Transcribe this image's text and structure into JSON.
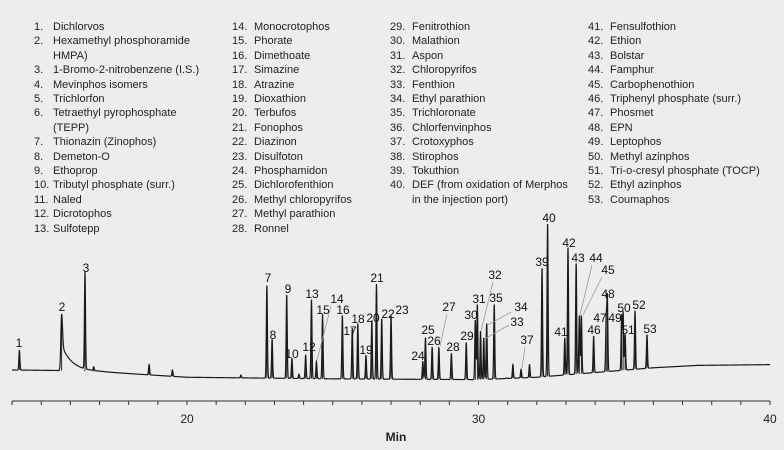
{
  "legend": {
    "columns": [
      [
        {
          "num": "1.",
          "name": "Dichlorvos"
        },
        {
          "num": "2.",
          "name": "Hexamethyl phosphoramide",
          "cont": "HMPA)"
        },
        {
          "num": "3.",
          "name": "1-Bromo-2-nitrobenzene (I.S.)"
        },
        {
          "num": "4.",
          "name": "Mevinphos isomers"
        },
        {
          "num": "5.",
          "name": "Trichlorfon"
        },
        {
          "num": "6.",
          "name": "Tetraethyl pyrophosphate",
          "cont": "(TEPP)"
        },
        {
          "num": "7.",
          "name": "Thionazin (Zinophos)"
        },
        {
          "num": "8.",
          "name": "Demeton-O"
        },
        {
          "num": "9.",
          "name": "Ethoprop"
        },
        {
          "num": "10.",
          "name": "Tributyl phosphate (surr.)"
        },
        {
          "num": "11.",
          "name": "Naled"
        },
        {
          "num": "12.",
          "name": "Dicrotophos"
        },
        {
          "num": "13.",
          "name": "Sulfotepp"
        }
      ],
      [
        {
          "num": "14.",
          "name": "Monocrotophos"
        },
        {
          "num": "15.",
          "name": "Phorate"
        },
        {
          "num": "16.",
          "name": "Dimethoate"
        },
        {
          "num": "17.",
          "name": "Simazine"
        },
        {
          "num": "18.",
          "name": "Atrazine"
        },
        {
          "num": "19.",
          "name": "Dioxathion"
        },
        {
          "num": "20.",
          "name": "Terbufos"
        },
        {
          "num": "21.",
          "name": "Fonophos"
        },
        {
          "num": "22.",
          "name": "Diazinon"
        },
        {
          "num": "23.",
          "name": "Disulfoton"
        },
        {
          "num": "24.",
          "name": "Phosphamidon"
        },
        {
          "num": "25.",
          "name": "Dichlorofenthion"
        },
        {
          "num": "26.",
          "name": "Methyl chloropyrifos"
        },
        {
          "num": "27.",
          "name": "Methyl parathion"
        },
        {
          "num": "28.",
          "name": "Ronnel"
        }
      ],
      [
        {
          "num": "29.",
          "name": "Fenitrothion"
        },
        {
          "num": "30.",
          "name": "Malathion"
        },
        {
          "num": "31.",
          "name": "Aspon"
        },
        {
          "num": "32.",
          "name": "Chloropyrifos"
        },
        {
          "num": "33.",
          "name": "Fenthion"
        },
        {
          "num": "34.",
          "name": "Ethyl parathion"
        },
        {
          "num": "35.",
          "name": "Trichloronate"
        },
        {
          "num": "36.",
          "name": "Chlorfenvinphos"
        },
        {
          "num": "37.",
          "name": "Crotoxyphos"
        },
        {
          "num": "38.",
          "name": "Stirophos"
        },
        {
          "num": "39.",
          "name": "Tokuthion"
        },
        {
          "num": "40.",
          "name": "DEF (from oxidation of Merphos",
          "cont": "in the injection port)"
        }
      ],
      [
        {
          "num": "41.",
          "name": "Fensulfothion"
        },
        {
          "num": "42.",
          "name": "Ethion"
        },
        {
          "num": "43.",
          "name": "Bolstar"
        },
        {
          "num": "44.",
          "name": "Famphur"
        },
        {
          "num": "45.",
          "name": "Carbophenothion"
        },
        {
          "num": "46.",
          "name": "Triphenyl phosphate (surr.)"
        },
        {
          "num": "47.",
          "name": "Phosmet"
        },
        {
          "num": "48.",
          "name": "EPN"
        },
        {
          "num": "49.",
          "name": "Leptophos"
        },
        {
          "num": "50.",
          "name": "Methyl azinphos"
        },
        {
          "num": "51.",
          "name": "Tri-o-cresyl phosphate (TOCP)"
        },
        {
          "num": "52.",
          "name": "Ethyl azinphos"
        },
        {
          "num": "53.",
          "name": "Coumaphos"
        }
      ]
    ]
  },
  "chart_data": {
    "type": "line",
    "title": "",
    "xlabel": "Min",
    "ylabel": "",
    "xlim": [
      14,
      40
    ],
    "ylim": [
      0,
      100
    ],
    "x_ticks": [
      20,
      30,
      40
    ],
    "x_minor_tick_step": 1,
    "grid": false,
    "y_axis_shown": false,
    "colors": {
      "trace": "#1a1a1a",
      "leader": "#999999",
      "background": "#ededed"
    },
    "baseline": [
      [
        14,
        7.6
      ],
      [
        15.5,
        7.3
      ],
      [
        17,
        6.5
      ],
      [
        20,
        3
      ],
      [
        25,
        2
      ],
      [
        30,
        1.5
      ],
      [
        32,
        3
      ],
      [
        34,
        6
      ],
      [
        36,
        9
      ],
      [
        37.5,
        10.5
      ],
      [
        40,
        11
      ]
    ],
    "peaks": [
      {
        "label": "1",
        "rt": 14.25,
        "height": 20
      },
      {
        "label": "2",
        "rt": 15.7,
        "height": 43,
        "tailing": true
      },
      {
        "label": "3",
        "rt": 16.5,
        "height": 68
      },
      {
        "label": "7",
        "rt": 22.74,
        "height": 61
      },
      {
        "label": "8",
        "rt": 22.92,
        "height": 27
      },
      {
        "label": "9",
        "rt": 23.42,
        "height": 55
      },
      {
        "label": "10",
        "rt": 23.6,
        "height": 15
      },
      {
        "label": "12",
        "rt": 24.07,
        "height": 17
      },
      {
        "label": "13",
        "rt": 24.27,
        "height": 52
      },
      {
        "label": "14",
        "rt": 24.44,
        "height": 13
      },
      {
        "label": "15",
        "rt": 24.65,
        "height": 43
      },
      {
        "label": "16",
        "rt": 25.33,
        "height": 42
      },
      {
        "label": "17",
        "rt": 25.67,
        "height": 34
      },
      {
        "label": "18",
        "rt": 25.86,
        "height": 37
      },
      {
        "label": "19",
        "rt": 26.14,
        "height": 17
      },
      {
        "label": "20",
        "rt": 26.34,
        "height": 39
      },
      {
        "label": "21",
        "rt": 26.5,
        "height": 62
      },
      {
        "label": "22",
        "rt": 26.68,
        "height": 40
      },
      {
        "label": "23",
        "rt": 27.0,
        "height": 42
      },
      {
        "label": "24",
        "rt": 28.09,
        "height": 13
      },
      {
        "label": "25",
        "rt": 28.18,
        "height": 28
      },
      {
        "label": "26",
        "rt": 28.41,
        "height": 22
      },
      {
        "label": "27",
        "rt": 28.64,
        "height": 22
      },
      {
        "label": "28",
        "rt": 29.07,
        "height": 18
      },
      {
        "label": "29",
        "rt": 29.58,
        "height": 25
      },
      {
        "label": "30",
        "rt": 29.89,
        "height": 39
      },
      {
        "label": "31",
        "rt": 29.96,
        "height": 49
      },
      {
        "label": "32",
        "rt": 30.07,
        "height": 32
      },
      {
        "label": "33",
        "rt": 30.18,
        "height": 28
      },
      {
        "label": "34",
        "rt": 30.28,
        "height": 37
      },
      {
        "label": "35",
        "rt": 30.54,
        "height": 49
      },
      {
        "label": "37",
        "rt": 31.46,
        "height": 8
      },
      {
        "label": "39",
        "rt": 32.18,
        "height": 72
      },
      {
        "label": "40",
        "rt": 32.37,
        "height": 100
      },
      {
        "label": "41",
        "rt": 32.96,
        "height": 28
      },
      {
        "label": "42",
        "rt": 33.07,
        "height": 85
      },
      {
        "label": "43",
        "rt": 33.35,
        "height": 75
      },
      {
        "label": "44",
        "rt": 33.46,
        "height": 42
      },
      {
        "label": "45",
        "rt": 33.53,
        "height": 42
      },
      {
        "label": "46",
        "rt": 33.95,
        "height": 29
      },
      {
        "label": "47",
        "rt": 34.38,
        "height": 39
      },
      {
        "label": "48",
        "rt": 34.42,
        "height": 53
      },
      {
        "label": "49",
        "rt": 34.91,
        "height": 42
      },
      {
        "label": "50",
        "rt": 34.96,
        "height": 44
      },
      {
        "label": "51",
        "rt": 35.03,
        "height": 30
      },
      {
        "label": "52",
        "rt": 35.37,
        "height": 45
      },
      {
        "label": "53",
        "rt": 35.78,
        "height": 30
      }
    ],
    "minor_peaks": [
      {
        "rt": 16.8,
        "height": 9
      },
      {
        "rt": 18.7,
        "height": 11
      },
      {
        "rt": 19.5,
        "height": 7.6
      },
      {
        "rt": 21.85,
        "height": 4.4
      },
      {
        "rt": 23.84,
        "height": 5
      },
      {
        "rt": 30.95,
        "height": 2.5
      },
      {
        "rt": 31.18,
        "height": 11
      },
      {
        "rt": 31.75,
        "height": 11
      }
    ]
  }
}
